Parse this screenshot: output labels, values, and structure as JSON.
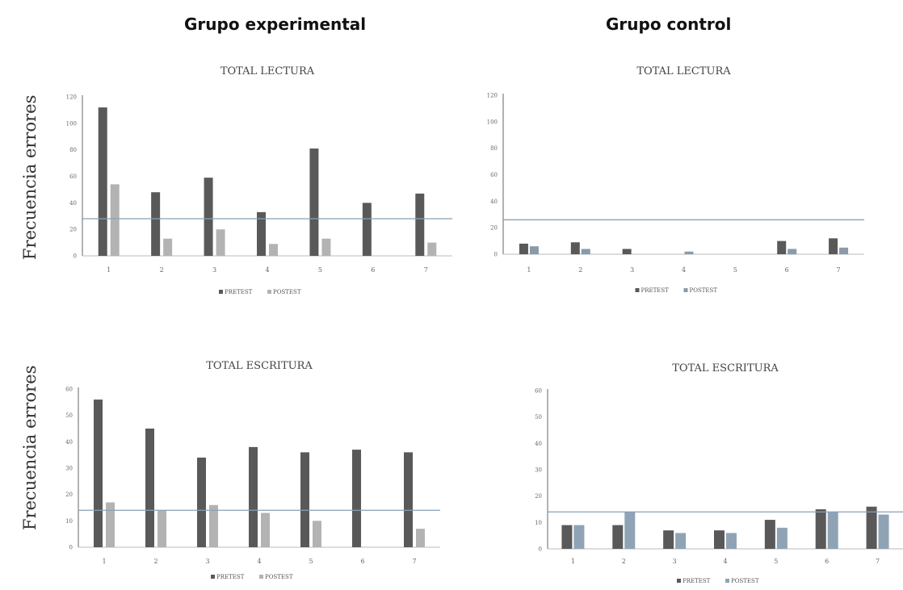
{
  "headers": {
    "experimental": "Grupo experimental",
    "control": "Grupo control"
  },
  "ylabel": "Frecuencia errores",
  "chart_data": [
    {
      "id": "exp-lectura",
      "type": "bar",
      "title": "TOTAL LECTURA",
      "categories": [
        "1",
        "2",
        "3",
        "4",
        "5",
        "6",
        "7"
      ],
      "ylim": [
        0,
        120
      ],
      "yticks": [
        0,
        20,
        40,
        60,
        80,
        100,
        120
      ],
      "reference_line": 28,
      "series": [
        {
          "name": "PRETEST",
          "values": [
            112,
            48,
            59,
            33,
            81,
            40,
            47
          ],
          "color": "#595959"
        },
        {
          "name": "POSTEST",
          "values": [
            54,
            13,
            20,
            9,
            13,
            0,
            10
          ],
          "color": "#b3b3b3"
        }
      ],
      "legend": "bottom",
      "grid": false
    },
    {
      "id": "ctl-lectura",
      "type": "bar",
      "title": "TOTAL LECTURA",
      "categories": [
        "1",
        "2",
        "3",
        "4",
        "5",
        "6",
        "7"
      ],
      "ylim": [
        0,
        120
      ],
      "yticks": [
        0,
        20,
        40,
        60,
        80,
        100,
        120
      ],
      "reference_line": 26,
      "series": [
        {
          "name": "PRETEST",
          "values": [
            8,
            9,
            4,
            0,
            0,
            10,
            12
          ],
          "color": "#595959"
        },
        {
          "name": "POSTEST",
          "values": [
            6,
            4,
            0,
            2,
            0,
            4,
            5
          ],
          "color": "#8a9aa8"
        }
      ],
      "legend": "bottom",
      "grid": false
    },
    {
      "id": "exp-escritura",
      "type": "bar",
      "title": "TOTAL ESCRITURA",
      "categories": [
        "1",
        "2",
        "3",
        "4",
        "5",
        "6",
        "7"
      ],
      "ylim": [
        0,
        60
      ],
      "yticks": [
        0,
        10,
        20,
        30,
        40,
        50,
        60
      ],
      "reference_line": 14,
      "series": [
        {
          "name": "PRETEST",
          "values": [
            56,
            45,
            34,
            38,
            36,
            37,
            36
          ],
          "color": "#595959"
        },
        {
          "name": "POSTEST",
          "values": [
            17,
            14,
            16,
            13,
            10,
            0,
            7
          ],
          "color": "#b3b3b3"
        }
      ],
      "legend": "bottom",
      "grid": false
    },
    {
      "id": "ctl-escritura",
      "type": "bar",
      "title": "TOTAL ESCRITURA",
      "categories": [
        "1",
        "2",
        "3",
        "4",
        "5",
        "6",
        "7"
      ],
      "ylim": [
        0,
        60
      ],
      "yticks": [
        0,
        10,
        20,
        30,
        40,
        50,
        60
      ],
      "reference_line": 14,
      "series": [
        {
          "name": "PRETEST",
          "values": [
            9,
            9,
            7,
            7,
            11,
            15,
            16
          ],
          "color": "#595959"
        },
        {
          "name": "POSTEST",
          "values": [
            9,
            14,
            6,
            6,
            8,
            14,
            13
          ],
          "color": "#8fa3b5"
        }
      ],
      "legend": "bottom",
      "grid": false
    }
  ]
}
